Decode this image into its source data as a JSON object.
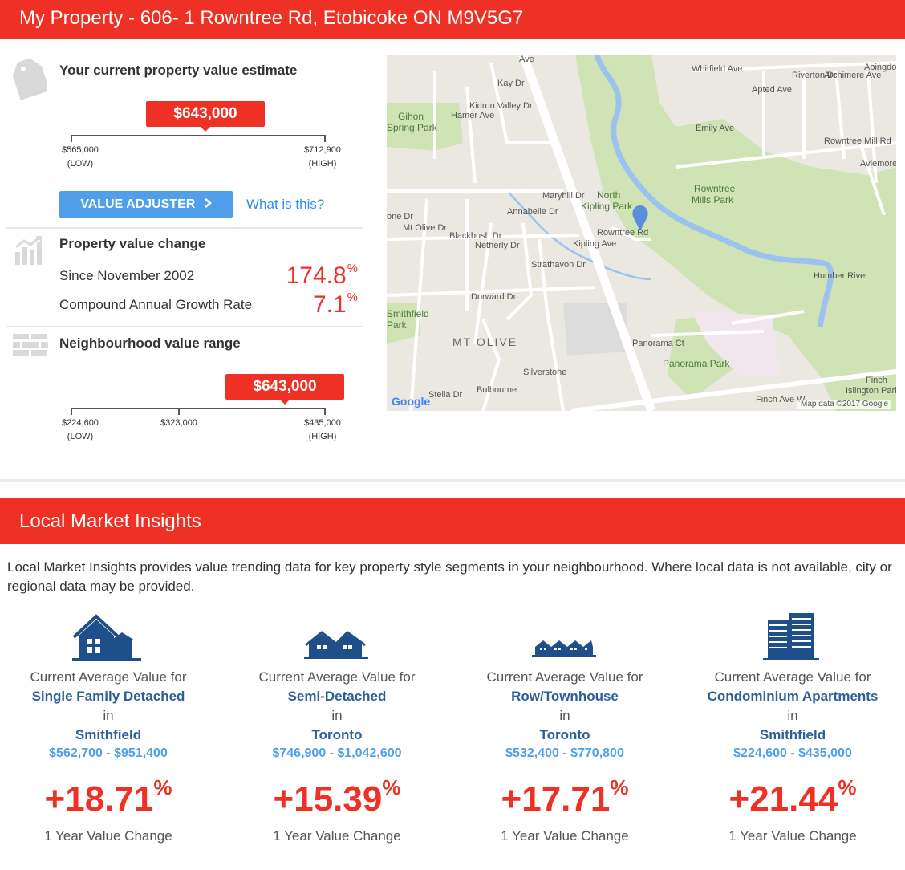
{
  "header": {
    "title": "My Property - 606- 1 Rowntree Rd, Etobicoke ON M9V5G7"
  },
  "estimate": {
    "title": "Your current property value estimate",
    "value": "$643,000",
    "low_value": "$565,000",
    "low_label": "(LOW)",
    "high_value": "$712,900",
    "high_label": "(HIGH)",
    "adjuster_label": "VALUE ADJUSTER",
    "what_is_this": "What is this?"
  },
  "value_change": {
    "title": "Property value change",
    "rows": [
      {
        "label": "Since November 2002",
        "value": "174.8",
        "unit": "%"
      },
      {
        "label": "Compound Annual Growth Rate",
        "value": "7.1",
        "unit": "%"
      }
    ]
  },
  "neighbourhood": {
    "title": "Neighbourhood value range",
    "value": "$643,000",
    "low_value": "$224,600",
    "low_label": "(LOW)",
    "mid_value": "$323,000",
    "high_value": "$435,000",
    "high_label": "(HIGH)"
  },
  "map": {
    "labels": [
      "Whitfield Ave",
      "Archimere Ave",
      "Rowntree Mill Rd",
      "Kidron Valley Dr",
      "Gihon",
      "Spring Park",
      "Kay Dr",
      "Hamer Ave",
      "Emily Ave",
      "Apted Ave",
      "Riverton Dr",
      "Abingdon Ave",
      "Aviemore Dr",
      "North",
      "Kipling Park",
      "Rowntree",
      "Mills Park",
      "Rowntree Rd",
      "Kipling Ave",
      "Maryhill Dr",
      "Annabelle Dr",
      "Mt Olive Dr",
      "Blackbush Dr",
      "Netherly Dr",
      "Strathavon Dr",
      "Dorward Dr",
      "Humber River",
      "Smithfield",
      "Park",
      "MT OLIVE",
      "Panorama Ct",
      "Panorama Park",
      "Silverstone",
      "Finch",
      "Islington Park",
      "Finch Ave W",
      "Bulbourne",
      "Stella Dr",
      "Ave",
      "one Dr"
    ],
    "attribution": "Map data ©2017 Google",
    "logo": "Google"
  },
  "lmi": {
    "title": "Local Market Insights",
    "intro": "Local Market Insights provides value trending data for key property style segments in your neighbourhood. Where local data is not available, city or regional data may be provided.",
    "segments": [
      {
        "icon": "detached-house-icon",
        "prefix": "Current Average Value for",
        "type": "Single Family Detached",
        "in": "in",
        "area": "Smithfield",
        "range": "$562,700 - $951,400",
        "change": "+18.71",
        "unit": "%",
        "change_label": "1 Year Value Change"
      },
      {
        "icon": "semi-detached-house-icon",
        "prefix": "Current Average Value for",
        "type": "Semi-Detached",
        "in": "in",
        "area": "Toronto",
        "range": "$746,900 - $1,042,600",
        "change": "+15.39",
        "unit": "%",
        "change_label": "1 Year Value Change"
      },
      {
        "icon": "townhouse-icon",
        "prefix": "Current Average Value for",
        "type": "Row/Townhouse",
        "in": "in",
        "area": "Toronto",
        "range": "$532,400 - $770,800",
        "change": "+17.71",
        "unit": "%",
        "change_label": "1 Year Value Change"
      },
      {
        "icon": "condo-building-icon",
        "prefix": "Current Average Value for",
        "type": "Condominium Apartments",
        "in": "in",
        "area": "Smithfield",
        "range": "$224,600 - $435,000",
        "change": "+21.44",
        "unit": "%",
        "change_label": "1 Year Value Change"
      }
    ]
  },
  "colors": {
    "accent_red": "#ee3124",
    "link_blue": "#2f8ee6",
    "button_blue": "#4f9fea",
    "navy": "#2d5f98"
  }
}
